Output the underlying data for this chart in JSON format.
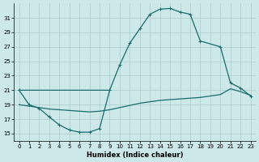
{
  "xlabel": "Humidex (Indice chaleur)",
  "bg_color": "#cce8e8",
  "grid_color": "#aacccc",
  "line_color": "#1a6b6b",
  "xlim": [
    -0.5,
    23.5
  ],
  "ylim": [
    14.0,
    33.0
  ],
  "yticks": [
    15,
    17,
    19,
    21,
    23,
    25,
    27,
    29,
    31
  ],
  "xticks": [
    0,
    1,
    2,
    3,
    4,
    5,
    6,
    7,
    8,
    9,
    10,
    11,
    12,
    13,
    14,
    15,
    16,
    17,
    18,
    19,
    20,
    21,
    22,
    23
  ],
  "curve_vshaped_x": [
    0,
    1,
    2,
    3,
    4,
    5,
    6,
    7,
    8,
    9
  ],
  "curve_vshaped_y": [
    21.0,
    19.0,
    18.5,
    17.3,
    16.2,
    15.5,
    15.2,
    15.2,
    15.7,
    21.0
  ],
  "curve_upper_x": [
    0,
    9,
    10,
    11,
    12,
    13,
    14,
    15,
    16,
    17,
    18,
    20,
    21,
    22,
    23
  ],
  "curve_upper_y": [
    21.0,
    21.0,
    24.5,
    27.5,
    29.5,
    31.5,
    32.2,
    32.3,
    31.8,
    31.5,
    27.8,
    27.0,
    22.0,
    21.3,
    20.2
  ],
  "curve_flat_x": [
    0,
    1,
    2,
    3,
    4,
    5,
    6,
    7,
    8,
    9,
    10,
    11,
    12,
    13,
    14,
    15,
    16,
    17,
    18,
    19,
    20,
    21,
    22,
    23
  ],
  "curve_flat_y": [
    19.0,
    18.8,
    18.6,
    18.4,
    18.3,
    18.2,
    18.1,
    18.0,
    18.1,
    18.3,
    18.6,
    18.9,
    19.2,
    19.4,
    19.6,
    19.7,
    19.8,
    19.9,
    20.0,
    20.2,
    20.4,
    21.2,
    20.8,
    20.3
  ],
  "marker": "+",
  "markersize": 3,
  "linewidth": 0.9,
  "tick_fontsize": 5,
  "xlabel_fontsize": 6
}
